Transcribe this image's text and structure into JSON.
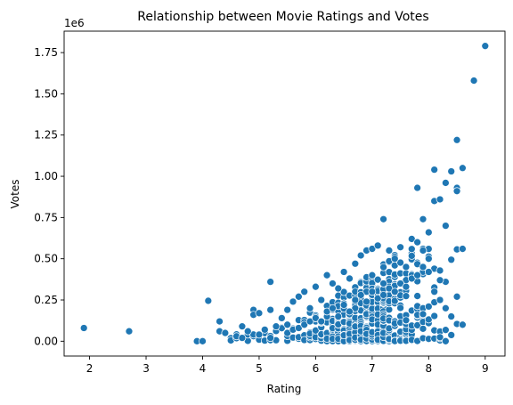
{
  "chart_data": {
    "type": "scatter",
    "title": "Relationship between Movie Ratings and Votes",
    "xlabel": "Rating",
    "ylabel": "Votes",
    "y_offset_label": "1e6",
    "xlim": [
      1.55,
      9.35
    ],
    "ylim": [
      -0.09,
      1.88
    ],
    "x_ticks": [
      2,
      3,
      4,
      5,
      6,
      7,
      8,
      9
    ],
    "x_tick_labels": [
      "2",
      "3",
      "4",
      "5",
      "6",
      "7",
      "8",
      "9"
    ],
    "y_ticks": [
      0,
      0.25,
      0.5,
      0.75,
      1.0,
      1.25,
      1.5,
      1.75
    ],
    "y_tick_labels": [
      "0.00",
      "0.25",
      "0.50",
      "0.75",
      "1.00",
      "1.25",
      "1.50",
      "1.75"
    ],
    "grid": false,
    "color": "#1f77b4",
    "series": [
      {
        "x": [
          1.9,
          2.7,
          3.9,
          4.0,
          4.1,
          4.3,
          4.3,
          4.4,
          4.6,
          4.7,
          4.7,
          4.8,
          4.9,
          4.9,
          5.0,
          5.0,
          5.1,
          5.2,
          5.2,
          5.2,
          5.3,
          5.4,
          5.5,
          5.5,
          5.6,
          5.7,
          5.8,
          5.9,
          6.0,
          6.1,
          6.2,
          6.2,
          6.3,
          6.4,
          6.5,
          6.6,
          6.7,
          6.7,
          6.8,
          6.9,
          6.9,
          7.0,
          7.0,
          7.1,
          7.2,
          7.2,
          7.3,
          7.4,
          7.5,
          7.6,
          7.7,
          7.7,
          7.8,
          7.8,
          7.9,
          7.9,
          8.0,
          8.0,
          8.1,
          8.1,
          8.2,
          8.2,
          8.3,
          8.3,
          8.4,
          8.5,
          8.5,
          8.5,
          8.6,
          8.6,
          8.8,
          9.0
        ],
        "y": [
          0.08,
          0.06,
          0.0,
          0.0,
          0.245,
          0.12,
          0.06,
          0.05,
          0.03,
          0.09,
          0.02,
          0.06,
          0.19,
          0.16,
          0.17,
          0.04,
          0.07,
          0.36,
          0.19,
          0.02,
          0.09,
          0.14,
          0.19,
          0.1,
          0.24,
          0.27,
          0.3,
          0.2,
          0.33,
          0.25,
          0.4,
          0.15,
          0.35,
          0.32,
          0.42,
          0.38,
          0.47,
          0.2,
          0.52,
          0.55,
          0.3,
          0.56,
          0.4,
          0.58,
          0.74,
          0.35,
          0.55,
          0.5,
          0.57,
          0.45,
          0.62,
          0.4,
          0.93,
          0.6,
          0.74,
          0.55,
          0.66,
          0.5,
          1.04,
          0.85,
          0.86,
          0.37,
          0.96,
          0.7,
          1.03,
          1.22,
          0.93,
          0.91,
          1.05,
          0.56,
          1.58,
          1.79
        ]
      },
      {
        "x": [
          5.5,
          5.6,
          5.7,
          5.8,
          5.9,
          6.0,
          6.1,
          6.2,
          6.3,
          6.4,
          6.5,
          6.6,
          6.7,
          6.8,
          6.9,
          7.0,
          7.1,
          7.2,
          7.3,
          7.4,
          7.5,
          7.6,
          7.7,
          7.8,
          7.9,
          8.0,
          8.1,
          8.2,
          8.3,
          8.4,
          8.5,
          8.6
        ],
        "y": [
          0.05,
          0.07,
          0.08,
          0.1,
          0.12,
          0.14,
          0.12,
          0.18,
          0.2,
          0.15,
          0.22,
          0.18,
          0.25,
          0.28,
          0.24,
          0.3,
          0.26,
          0.28,
          0.32,
          0.3,
          0.35,
          0.33,
          0.38,
          0.4,
          0.45,
          0.42,
          0.3,
          0.25,
          0.2,
          0.15,
          0.27,
          0.1
        ]
      }
    ],
    "notes_dense": "Dense cluster of additional points between rating 4.5 and 8.5 with votes mostly between 0 and 0.6 (×1e6)"
  }
}
